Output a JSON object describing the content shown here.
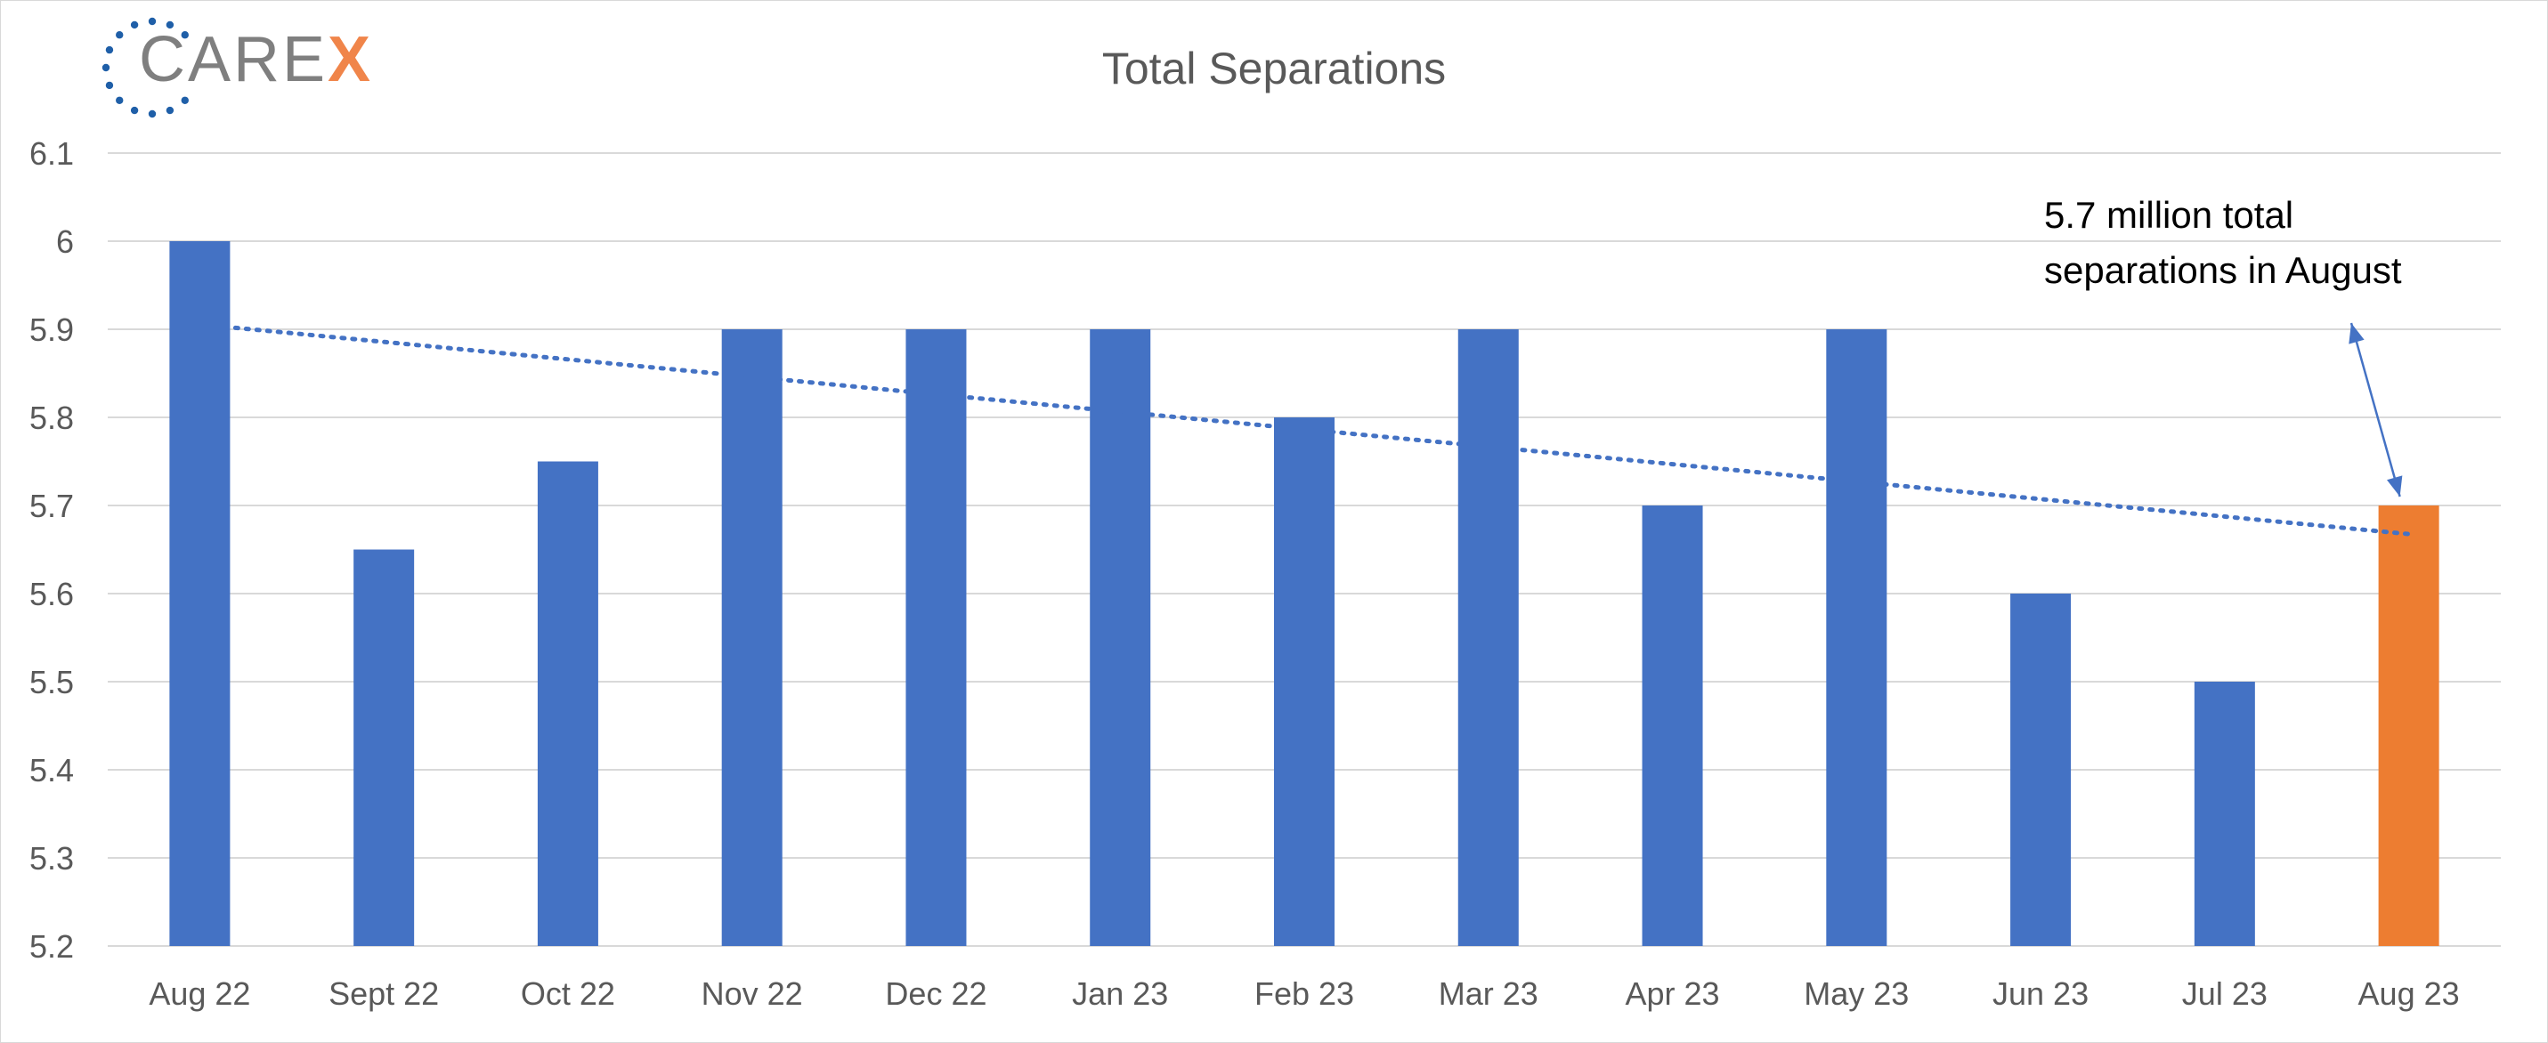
{
  "logo": {
    "main": "CARE",
    "accent": "X"
  },
  "colors": {
    "bar": "#4472c4",
    "highlight": "#ed7d31",
    "trend": "#4472c4",
    "grid": "#d9d9d9",
    "text": "#595959",
    "annotation": "#000000",
    "logo_dots": "#1f5fa8"
  },
  "chart_data": {
    "type": "bar",
    "title": "Total Separations",
    "xlabel": "",
    "ylabel": "",
    "categories": [
      "Aug 22",
      "Sept 22",
      "Oct 22",
      "Nov 22",
      "Dec 22",
      "Jan 23",
      "Feb 23",
      "Mar 23",
      "Apr 23",
      "May 23",
      "Jun 23",
      "Jul 23",
      "Aug 23"
    ],
    "values": [
      6.0,
      5.65,
      5.75,
      5.9,
      5.9,
      5.9,
      5.8,
      5.9,
      5.7,
      5.9,
      5.6,
      5.5,
      5.7
    ],
    "highlight_index": 12,
    "ylim": [
      5.2,
      6.1
    ],
    "yticks": [
      "5.2",
      "5.3",
      "5.4",
      "5.5",
      "5.6",
      "5.7",
      "5.8",
      "5.9",
      "6",
      "6.1"
    ],
    "grid": true,
    "legend": "none",
    "trendline": {
      "type": "linear",
      "style": "dotted"
    },
    "annotation": {
      "lines": [
        "5.7 million total",
        "separations in August"
      ],
      "points_to_index": 12
    }
  }
}
